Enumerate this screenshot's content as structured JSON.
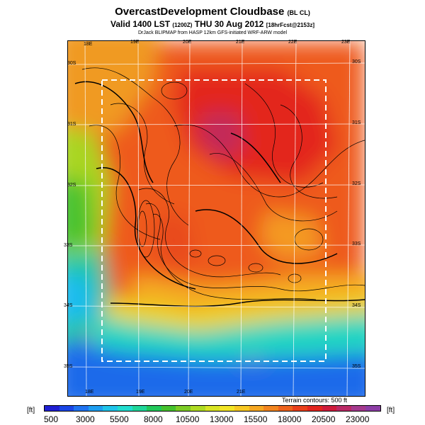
{
  "header": {
    "title": "OvercastDevelopment Cloudbase",
    "title_tag": "(BL CL)",
    "valid_main": "Valid 1400 LST",
    "valid_zulu": "(1200Z)",
    "valid_date": "THU 30 Aug 2012",
    "valid_fcst": "[18hrFcst@2153z]",
    "credit": "DrJack BLIPMAP from HASP 12km GFS-initiated WRF-ARW model"
  },
  "map": {
    "lon_top": [
      "18E",
      "19E",
      "20E",
      "21E",
      "22E",
      "23E"
    ],
    "lon_bottom": [
      "18E",
      "19E",
      "20E",
      "21E"
    ],
    "lat_left": [
      "30S",
      "31S",
      "32S",
      "33S",
      "34S",
      "35S"
    ],
    "lat_right": [
      "30S",
      "31S",
      "32S",
      "33S",
      "34S",
      "35S"
    ],
    "terrain_note": "Terrain contours: 500 ft"
  },
  "colorbar": {
    "unit": "[ft]",
    "labels": [
      "500",
      "3000",
      "5500",
      "8000",
      "10500",
      "13000",
      "15500",
      "18000",
      "20500",
      "23000"
    ],
    "colors": [
      "#1f1fd2",
      "#1a46e6",
      "#1f73f0",
      "#1e9ef0",
      "#1fc4ea",
      "#22ddcf",
      "#1fd79a",
      "#22c85a",
      "#45c22d",
      "#7ccc25",
      "#aedb23",
      "#d9e524",
      "#f2e526",
      "#f7c823",
      "#f5a722",
      "#f28520",
      "#ee631d",
      "#ea401b",
      "#e3261f",
      "#cf1c3c",
      "#bb2a66",
      "#a43a8e",
      "#8d3ea6"
    ]
  }
}
